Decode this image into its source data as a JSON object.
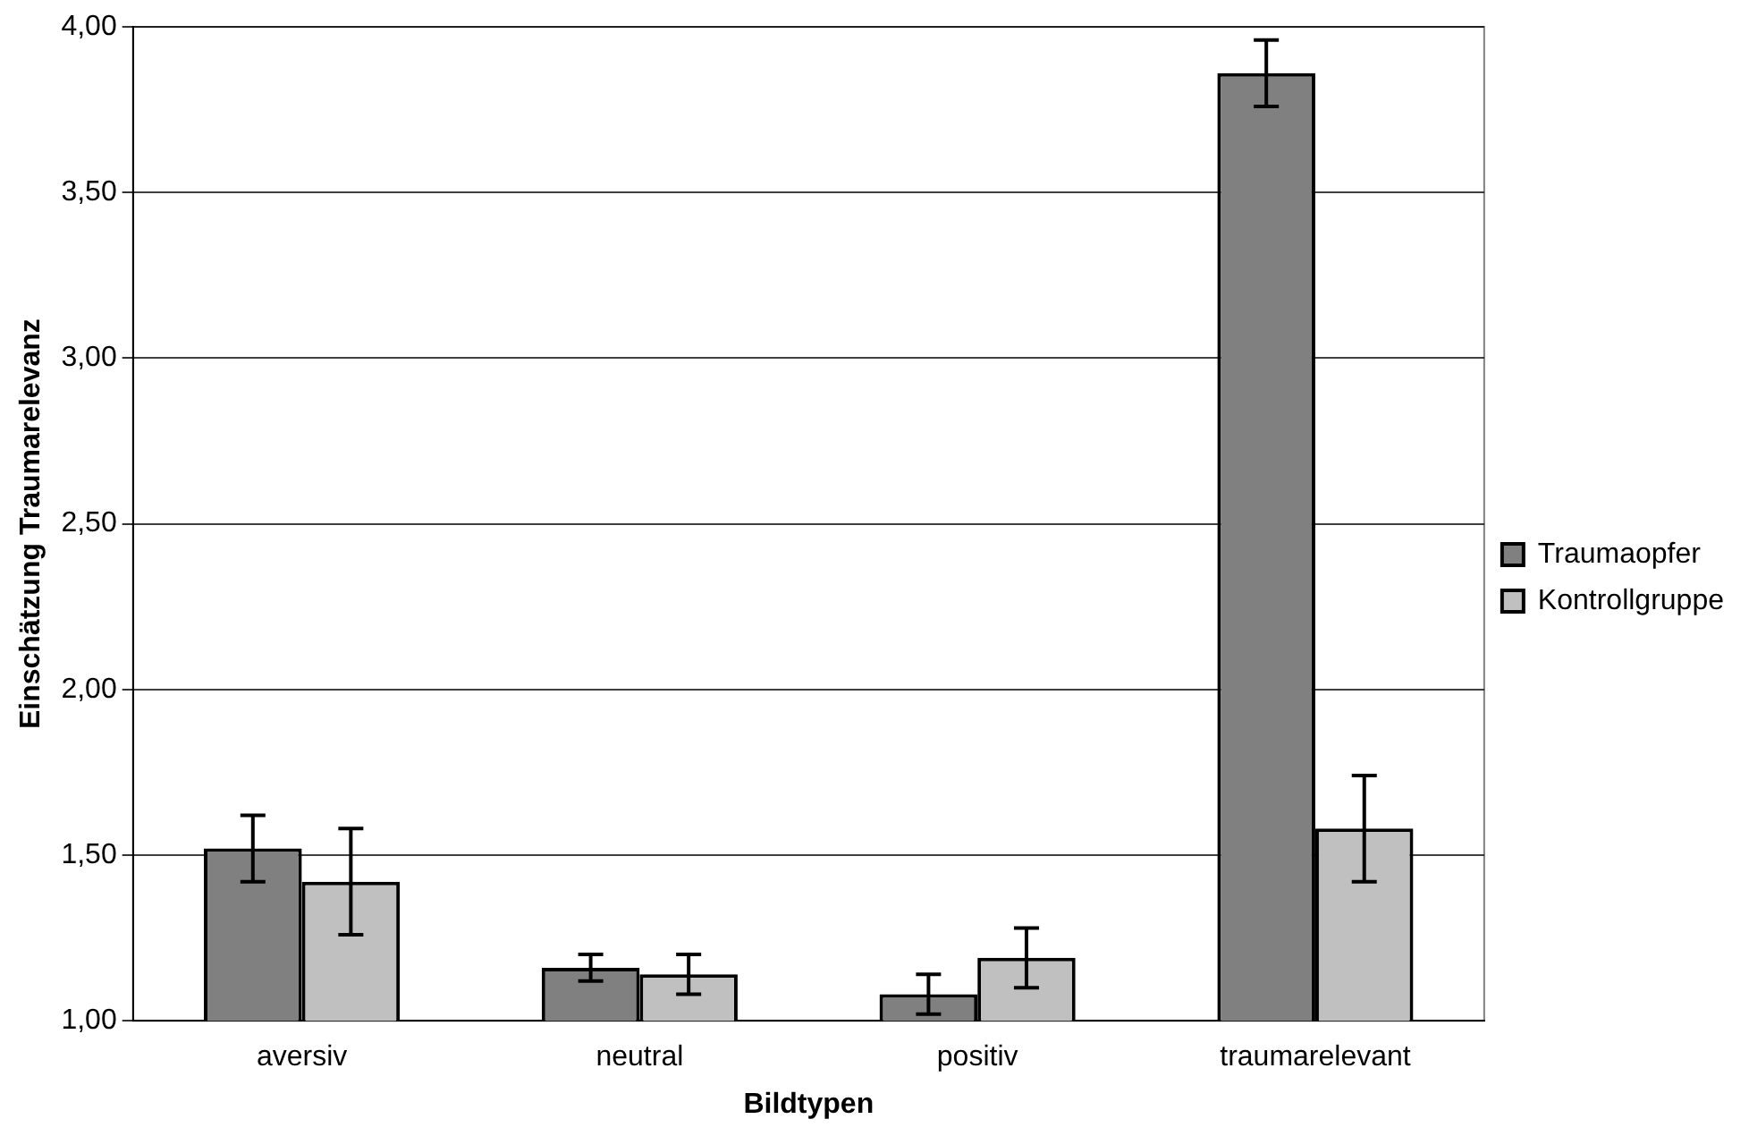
{
  "chart_data": {
    "type": "bar",
    "xlabel": "Bildtypen",
    "ylabel": "Einschätzung Traumarelevanz",
    "categories": [
      "aversiv",
      "neutral",
      "positiv",
      "traumarelevant"
    ],
    "series": [
      {
        "name": "Traumaopfer",
        "color": "#808080",
        "values": [
          1.52,
          1.16,
          1.08,
          3.86
        ],
        "errors": [
          0.1,
          0.04,
          0.06,
          0.1
        ]
      },
      {
        "name": "Kontrollgruppe",
        "color": "#c0c0c0",
        "values": [
          1.42,
          1.14,
          1.19,
          1.58
        ],
        "errors": [
          0.16,
          0.06,
          0.09,
          0.16
        ]
      }
    ],
    "ylim": [
      1,
      4
    ],
    "yticks": [
      {
        "value": 1,
        "label": "1,00"
      },
      {
        "value": 1.5,
        "label": "1,50"
      },
      {
        "value": 2,
        "label": "2,00"
      },
      {
        "value": 2.5,
        "label": "2,50"
      },
      {
        "value": 3,
        "label": "3,00"
      },
      {
        "value": 3.5,
        "label": "3,50"
      },
      {
        "value": 4,
        "label": "4,00"
      }
    ],
    "grid": "y",
    "legend": "right"
  }
}
